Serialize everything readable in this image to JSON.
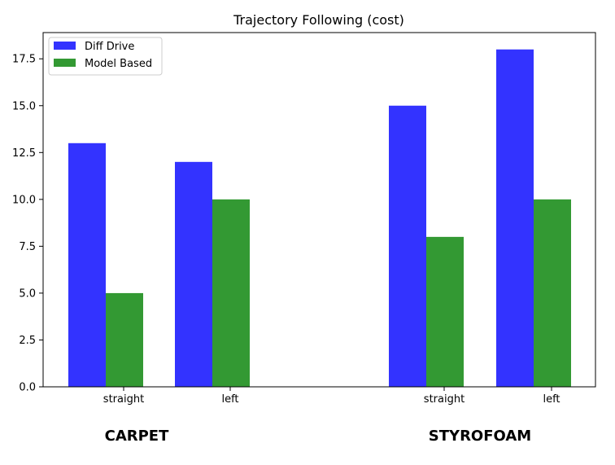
{
  "chart_data": {
    "type": "bar",
    "title": "Trajectory Following (cost)",
    "categories": [
      "straight",
      "left",
      "straight",
      "left"
    ],
    "groups": [
      {
        "label": "CARPET",
        "categories": [
          0,
          1
        ]
      },
      {
        "label": "STYROFOAM",
        "categories": [
          2,
          3
        ]
      }
    ],
    "series": [
      {
        "name": "Diff Drive",
        "color": "#3333ff",
        "values": [
          13,
          12,
          15,
          18
        ]
      },
      {
        "name": "Model Based",
        "color": "#339933",
        "values": [
          5,
          10,
          8,
          10
        ]
      }
    ],
    "yticks": [
      "0.0",
      "2.5",
      "5.0",
      "7.5",
      "10.0",
      "12.5",
      "15.0",
      "17.5"
    ],
    "ylim": [
      0,
      18.9
    ],
    "legend": "top-left",
    "grid": false
  }
}
